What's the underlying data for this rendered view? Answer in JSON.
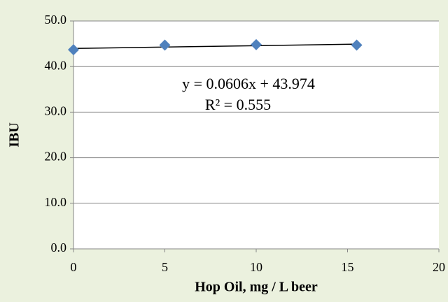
{
  "chart_data": {
    "type": "scatter",
    "x_label": "Hop Oil, mg / L beer",
    "y_label": "IBU",
    "series": [
      {
        "color": "#4f81bd",
        "x": [
          0,
          5,
          10,
          15.5
        ],
        "values": [
          43.7,
          44.7,
          44.8,
          44.7
        ]
      }
    ],
    "trendline": {
      "slope": 0.0606,
      "intercept": 43.974,
      "color": "#000000",
      "equation": "y = 0.0606x + 43.974",
      "r_squared": "R² = 0.555"
    },
    "xlim": [
      0,
      20
    ],
    "xticks": [
      0,
      5,
      10,
      15,
      20
    ],
    "ylim": [
      0,
      50
    ],
    "yticks": [
      {
        "value": 0,
        "label": "0.0"
      },
      {
        "value": 10,
        "label": "10.0"
      },
      {
        "value": 20,
        "label": "20.0"
      },
      {
        "value": 30,
        "label": "30.0"
      },
      {
        "value": 40,
        "label": "40.0"
      },
      {
        "value": 50,
        "label": "50.0"
      }
    ],
    "grid": true
  }
}
